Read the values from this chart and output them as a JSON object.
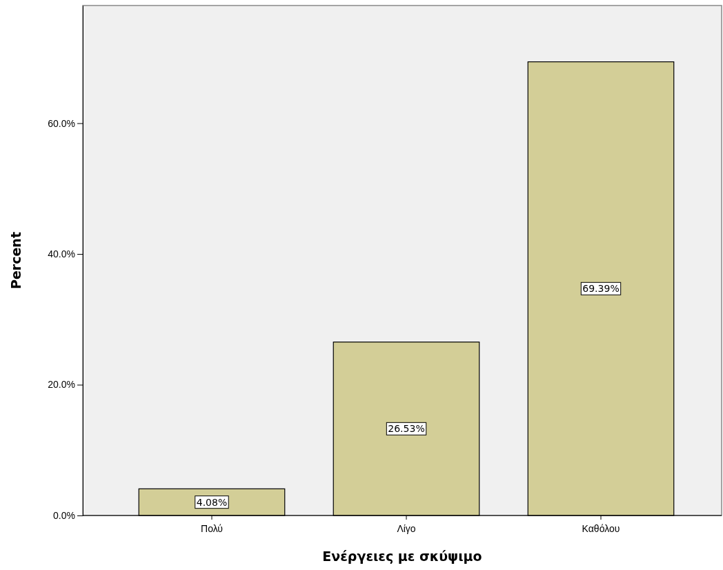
{
  "chart_data": {
    "type": "bar",
    "xlabel": "Ενέργειες με σκύψιμο",
    "ylabel": "Percent",
    "categories": [
      "Πολύ",
      "Λίγο",
      "Καθόλου"
    ],
    "values": [
      4.08,
      26.53,
      69.39
    ],
    "value_labels": [
      "4.08%",
      "26.53%",
      "69.39%"
    ],
    "color": "#d3ce97",
    "ylim": [
      0,
      78
    ],
    "yticks": [
      {
        "value": 0,
        "label": "0.0%"
      },
      {
        "value": 20,
        "label": "20.0%"
      },
      {
        "value": 40,
        "label": "40.0%"
      },
      {
        "value": 60,
        "label": "60.0%"
      }
    ],
    "grid": false
  }
}
